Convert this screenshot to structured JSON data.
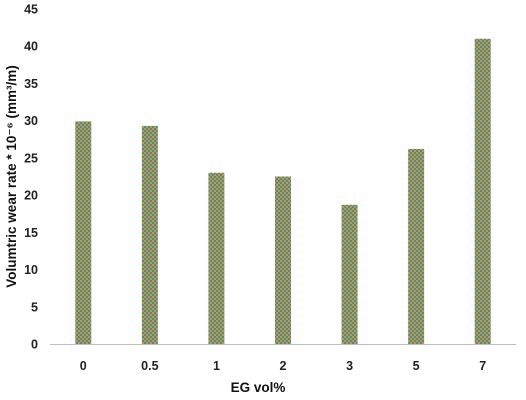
{
  "colors": {
    "bar_fill": "#2f9a95",
    "bar_pattern_accent": "#e08a3a",
    "axis_line": "#bfbfbf",
    "text": "#222222"
  },
  "chart_data": {
    "type": "bar",
    "categories": [
      "0",
      "0.5",
      "1",
      "2",
      "3",
      "5",
      "7"
    ],
    "values": [
      29.9,
      29.3,
      23.0,
      22.5,
      18.7,
      26.2,
      41.0
    ],
    "xlabel": "EG vol%",
    "ylabel": "Volumtric wear rate * 10⁻⁶  (mm³/m)",
    "ylim": [
      0,
      45
    ],
    "yticks": [
      "0",
      "5",
      "10",
      "15",
      "20",
      "25",
      "30",
      "35",
      "40",
      "45"
    ],
    "grid": false,
    "legend": "none"
  }
}
